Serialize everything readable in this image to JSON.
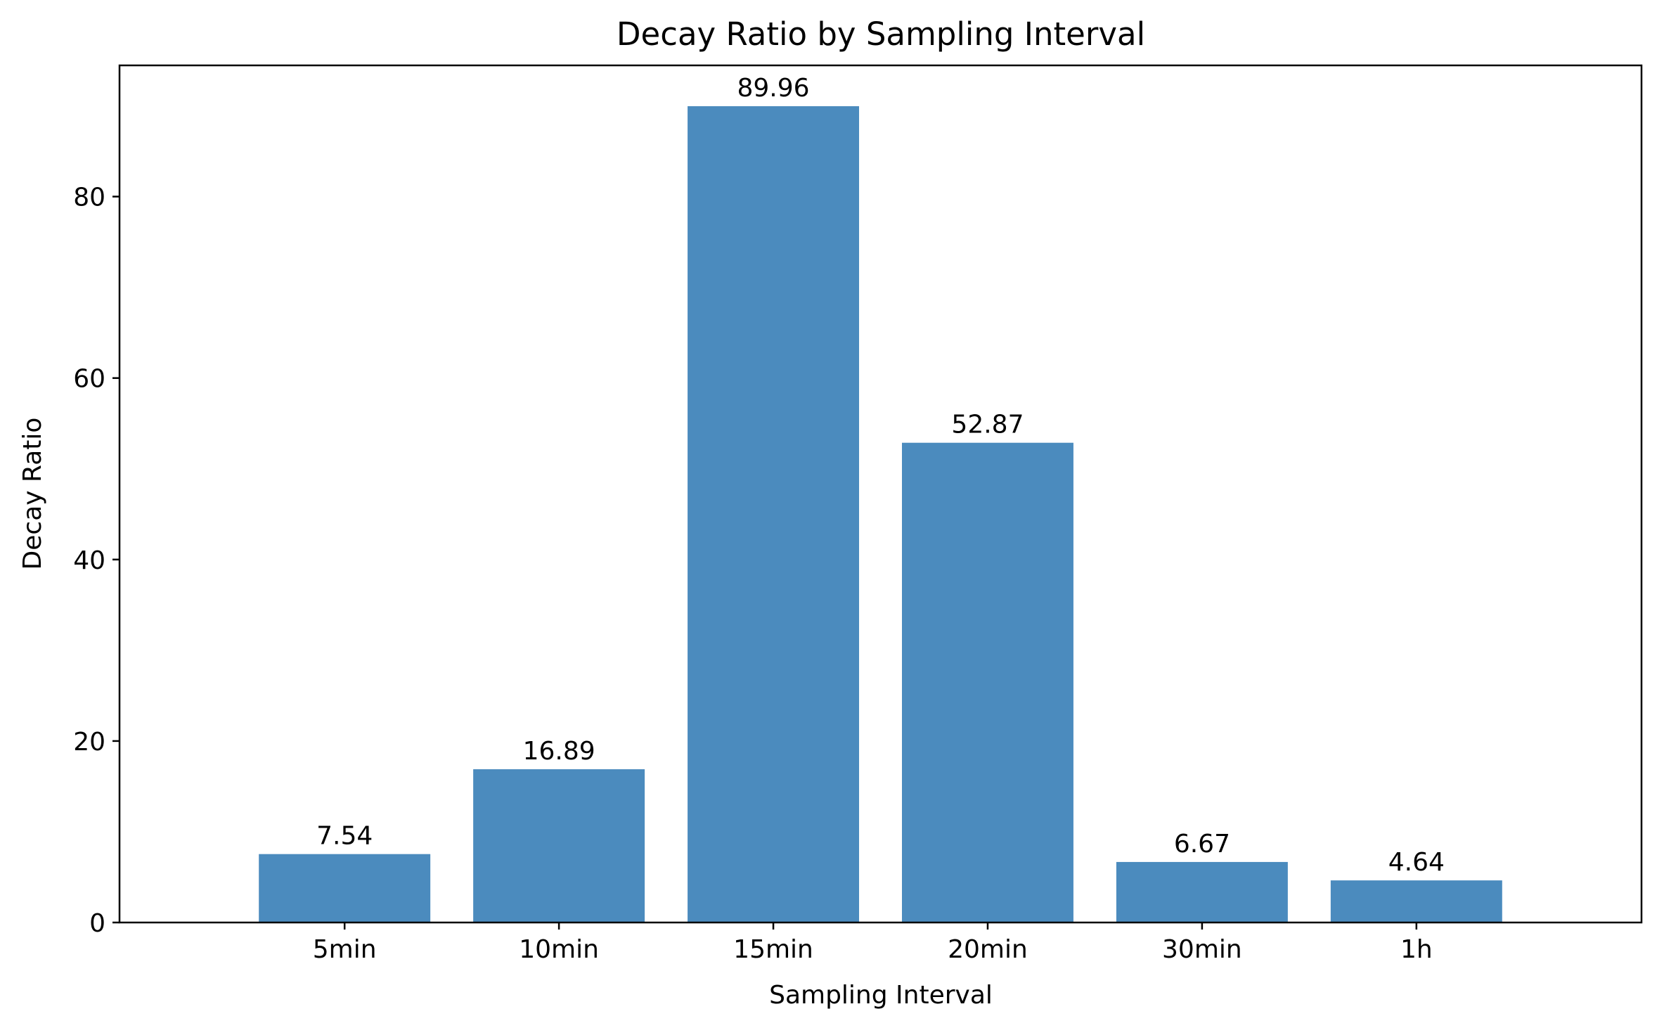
{
  "chart_data": {
    "type": "bar",
    "title": "Decay Ratio by Sampling Interval",
    "xlabel": "Sampling Interval",
    "ylabel": "Decay Ratio",
    "categories": [
      "5min",
      "10min",
      "15min",
      "20min",
      "30min",
      "1h"
    ],
    "values": [
      7.54,
      16.89,
      89.96,
      52.87,
      6.67,
      4.64
    ],
    "value_labels": [
      "7.54",
      "16.89",
      "89.96",
      "52.87",
      "6.67",
      "4.64"
    ],
    "ylim": [
      0,
      94.458
    ],
    "yticks": [
      0,
      20,
      40,
      60,
      80
    ],
    "ytick_labels": [
      "0",
      "20",
      "40",
      "60",
      "80"
    ],
    "grid": false,
    "legend": "none",
    "bar_color": "#4b8bbe"
  }
}
